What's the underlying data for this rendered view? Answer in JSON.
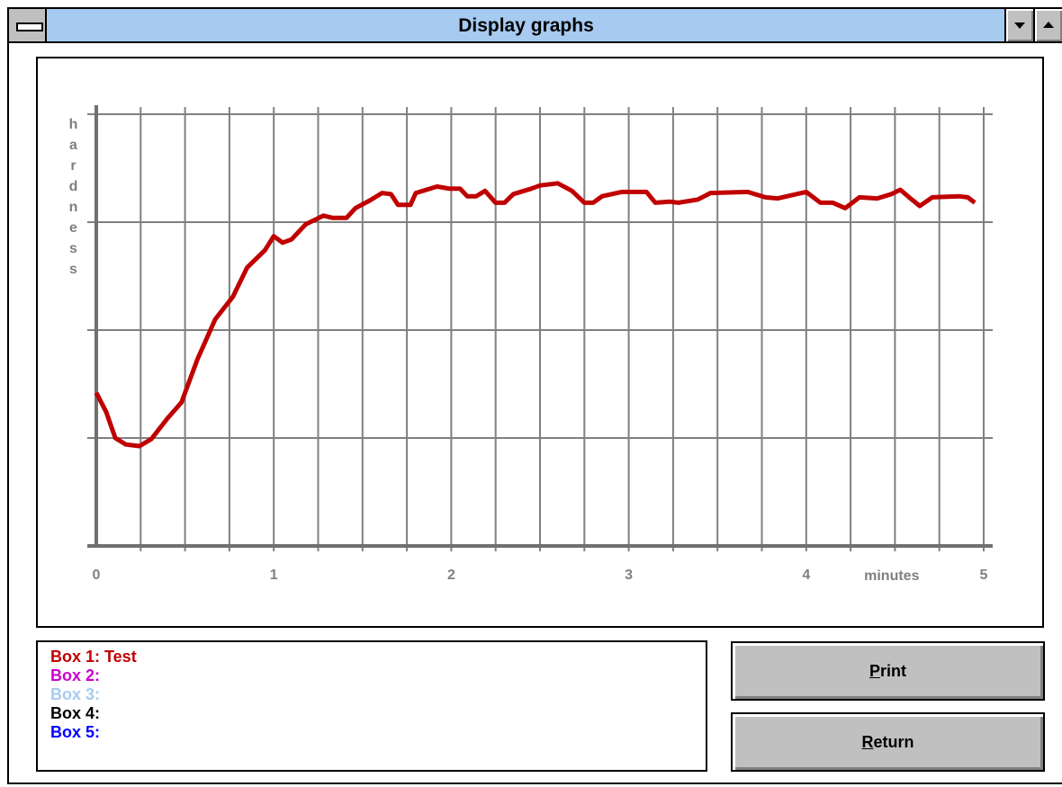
{
  "window": {
    "title": "Display graphs"
  },
  "chart_data": {
    "type": "line",
    "x_label": "minutes",
    "y_label": "hardness",
    "x": [
      0,
      0.056,
      0.107,
      0.167,
      0.243,
      0.31,
      0.4,
      0.48,
      0.57,
      0.67,
      0.77,
      0.85,
      0.95,
      1.0,
      1.05,
      1.1,
      1.18,
      1.28,
      1.33,
      1.41,
      1.46,
      1.54,
      1.61,
      1.66,
      1.7,
      1.77,
      1.8,
      1.92,
      1.99,
      2.05,
      2.09,
      2.14,
      2.19,
      2.25,
      2.3,
      2.35,
      2.45,
      2.5,
      2.6,
      2.68,
      2.75,
      2.8,
      2.85,
      2.96,
      3.1,
      3.15,
      3.23,
      3.28,
      3.39,
      3.46,
      3.67,
      3.77,
      3.84,
      4.0,
      4.08,
      4.15,
      4.22,
      4.3,
      4.4,
      4.48,
      4.53,
      4.58,
      4.64,
      4.71,
      4.86,
      4.91,
      4.95
    ],
    "series": [
      {
        "name": "Box 1: Test",
        "color": "#c00000",
        "values": [
          1.42,
          1.24,
          1.0,
          0.94,
          0.925,
          0.99,
          1.18,
          1.33,
          1.73,
          2.1,
          2.31,
          2.58,
          2.74,
          2.87,
          2.81,
          2.84,
          2.98,
          3.06,
          3.04,
          3.04,
          3.13,
          3.2,
          3.27,
          3.26,
          3.16,
          3.16,
          3.27,
          3.33,
          3.31,
          3.31,
          3.24,
          3.24,
          3.29,
          3.18,
          3.18,
          3.26,
          3.31,
          3.34,
          3.36,
          3.29,
          3.18,
          3.18,
          3.24,
          3.28,
          3.28,
          3.18,
          3.19,
          3.18,
          3.21,
          3.27,
          3.28,
          3.23,
          3.22,
          3.28,
          3.18,
          3.18,
          3.13,
          3.23,
          3.22,
          3.26,
          3.3,
          3.23,
          3.15,
          3.23,
          3.24,
          3.23,
          3.18
        ]
      }
    ],
    "other_boxes": [
      {
        "name": "Box 2:",
        "color": "#cc00cc"
      },
      {
        "name": "Box 3:",
        "color": "#a6caf0"
      },
      {
        "name": "Box 4:",
        "color": "#000000"
      },
      {
        "name": "Box 5:",
        "color": "#0000ff"
      }
    ],
    "xlim": [
      0,
      5
    ],
    "xticks": [
      0,
      1,
      2,
      3,
      4,
      5
    ],
    "xgrid": [
      0.25,
      0.5,
      0.75,
      1,
      1.25,
      1.5,
      1.75,
      2,
      2.25,
      2.5,
      2.75,
      3,
      3.25,
      3.5,
      3.75,
      4,
      4.25,
      4.5,
      4.75,
      5
    ],
    "ylim": [
      0,
      4
    ],
    "yticks": [
      1,
      2,
      3,
      4
    ],
    "grid": true
  },
  "buttons": [
    "Print",
    "Return"
  ]
}
